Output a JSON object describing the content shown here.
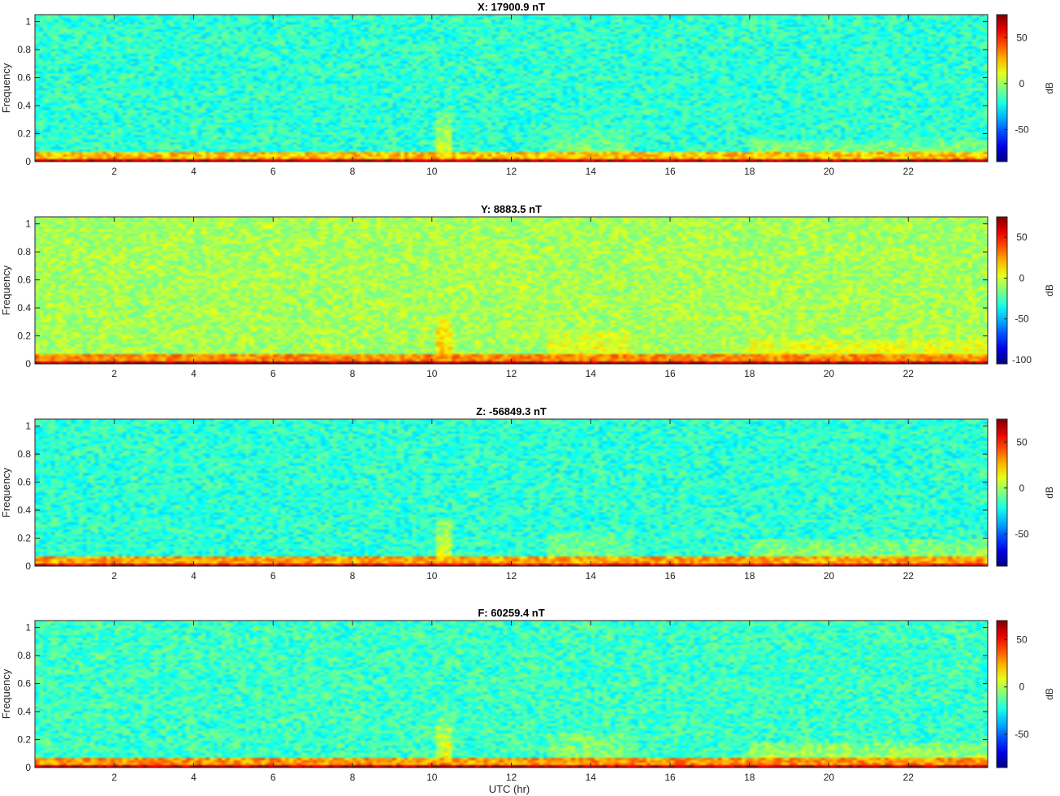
{
  "figure": {
    "xlabel": "UTC (hr)"
  },
  "chart_data": [
    {
      "type": "heatmap",
      "title": "X: 17900.9 nT",
      "ylabel": "Frequency",
      "xlim": [
        0,
        24
      ],
      "ylim": [
        0,
        1.05
      ],
      "xticks": [
        2,
        4,
        6,
        8,
        10,
        12,
        14,
        16,
        18,
        20,
        22
      ],
      "yticks": [
        0,
        0.2,
        0.4,
        0.6,
        0.8,
        1
      ],
      "colorbar": {
        "label": "dB",
        "clim": [
          -85,
          75
        ],
        "ticks": [
          -50,
          0,
          50
        ]
      },
      "colormap": "jet",
      "background_dB": -18,
      "low_band_dB": 25,
      "floor_dB": 65,
      "bursts": [
        {
          "t_start": 10.15,
          "t_end": 10.5,
          "f_top": 0.35,
          "dB": 10
        },
        {
          "t_start": 12.9,
          "t_end": 15.0,
          "f_top": 0.25,
          "dB": -5
        },
        {
          "t_start": 18.0,
          "t_end": 24.0,
          "f_top": 0.15,
          "dB": 0
        }
      ]
    },
    {
      "type": "heatmap",
      "title": "Y: 8883.5 nT",
      "ylabel": "Frequency",
      "xlim": [
        0,
        24
      ],
      "ylim": [
        0,
        1.05
      ],
      "xticks": [
        2,
        4,
        6,
        8,
        10,
        12,
        14,
        16,
        18,
        20,
        22
      ],
      "yticks": [
        0,
        0.2,
        0.4,
        0.6,
        0.8,
        1
      ],
      "colorbar": {
        "label": "dB",
        "clim": [
          -105,
          75
        ],
        "ticks": [
          -100,
          -50,
          0,
          50
        ]
      },
      "colormap": "jet",
      "background_dB": -8,
      "low_band_dB": 28,
      "floor_dB": 68,
      "bursts": [
        {
          "t_start": 10.15,
          "t_end": 10.5,
          "f_top": 0.35,
          "dB": 18
        },
        {
          "t_start": 12.9,
          "t_end": 15.0,
          "f_top": 0.25,
          "dB": 8
        },
        {
          "t_start": 18.0,
          "t_end": 24.0,
          "f_top": 0.18,
          "dB": 10
        }
      ]
    },
    {
      "type": "heatmap",
      "title": "Z: -56849.3 nT",
      "ylabel": "Frequency",
      "xlim": [
        0,
        24
      ],
      "ylim": [
        0,
        1.05
      ],
      "xticks": [
        2,
        4,
        6,
        8,
        10,
        12,
        14,
        16,
        18,
        20,
        22
      ],
      "yticks": [
        0,
        0.2,
        0.4,
        0.6,
        0.8,
        1
      ],
      "colorbar": {
        "label": "dB",
        "clim": [
          -85,
          75
        ],
        "ticks": [
          -50,
          0,
          50
        ]
      },
      "colormap": "jet",
      "background_dB": -18,
      "low_band_dB": 30,
      "floor_dB": 60,
      "bursts": [
        {
          "t_start": 10.15,
          "t_end": 10.5,
          "f_top": 0.35,
          "dB": 12
        },
        {
          "t_start": 12.9,
          "t_end": 15.0,
          "f_top": 0.25,
          "dB": -3
        },
        {
          "t_start": 18.0,
          "t_end": 24.0,
          "f_top": 0.2,
          "dB": 2
        }
      ]
    },
    {
      "type": "heatmap",
      "title": "F: 60259.4 nT",
      "ylabel": "Frequency",
      "xlim": [
        0,
        24
      ],
      "ylim": [
        0,
        1.05
      ],
      "xticks": [
        2,
        4,
        6,
        8,
        10,
        12,
        14,
        16,
        18,
        20,
        22
      ],
      "yticks": [
        0,
        0.2,
        0.4,
        0.6,
        0.8,
        1
      ],
      "colorbar": {
        "label": "dB",
        "clim": [
          -85,
          70
        ],
        "ticks": [
          -50,
          0,
          50
        ]
      },
      "colormap": "jet",
      "background_dB": -18,
      "low_band_dB": 28,
      "floor_dB": 62,
      "bursts": [
        {
          "t_start": 10.15,
          "t_end": 10.5,
          "f_top": 0.35,
          "dB": 12
        },
        {
          "t_start": 12.9,
          "t_end": 15.0,
          "f_top": 0.25,
          "dB": -3
        },
        {
          "t_start": 18.0,
          "t_end": 24.0,
          "f_top": 0.18,
          "dB": 4
        }
      ]
    }
  ]
}
